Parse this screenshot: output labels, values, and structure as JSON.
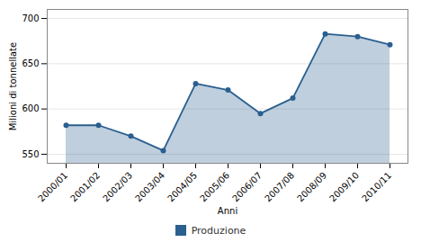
{
  "chart_data": {
    "type": "line",
    "xlabel": "Anni",
    "ylabel": "Milioni di tonnellate",
    "categories": [
      "2000/01",
      "2001/02",
      "2002/03",
      "2003/04",
      "2004/05",
      "2005/06",
      "2006/07",
      "2007/08",
      "2008/09",
      "2009/10",
      "2010/11"
    ],
    "series": [
      {
        "name": "Produzione",
        "color": "#2a5f8f",
        "marker": "circle",
        "values": [
          582,
          582,
          570,
          554,
          628,
          621,
          595,
          612,
          683,
          680,
          671
        ]
      }
    ],
    "ylim": [
      540,
      710
    ],
    "yticks": [
      550,
      600,
      650,
      700
    ],
    "grid": true,
    "legend": "bottom"
  }
}
